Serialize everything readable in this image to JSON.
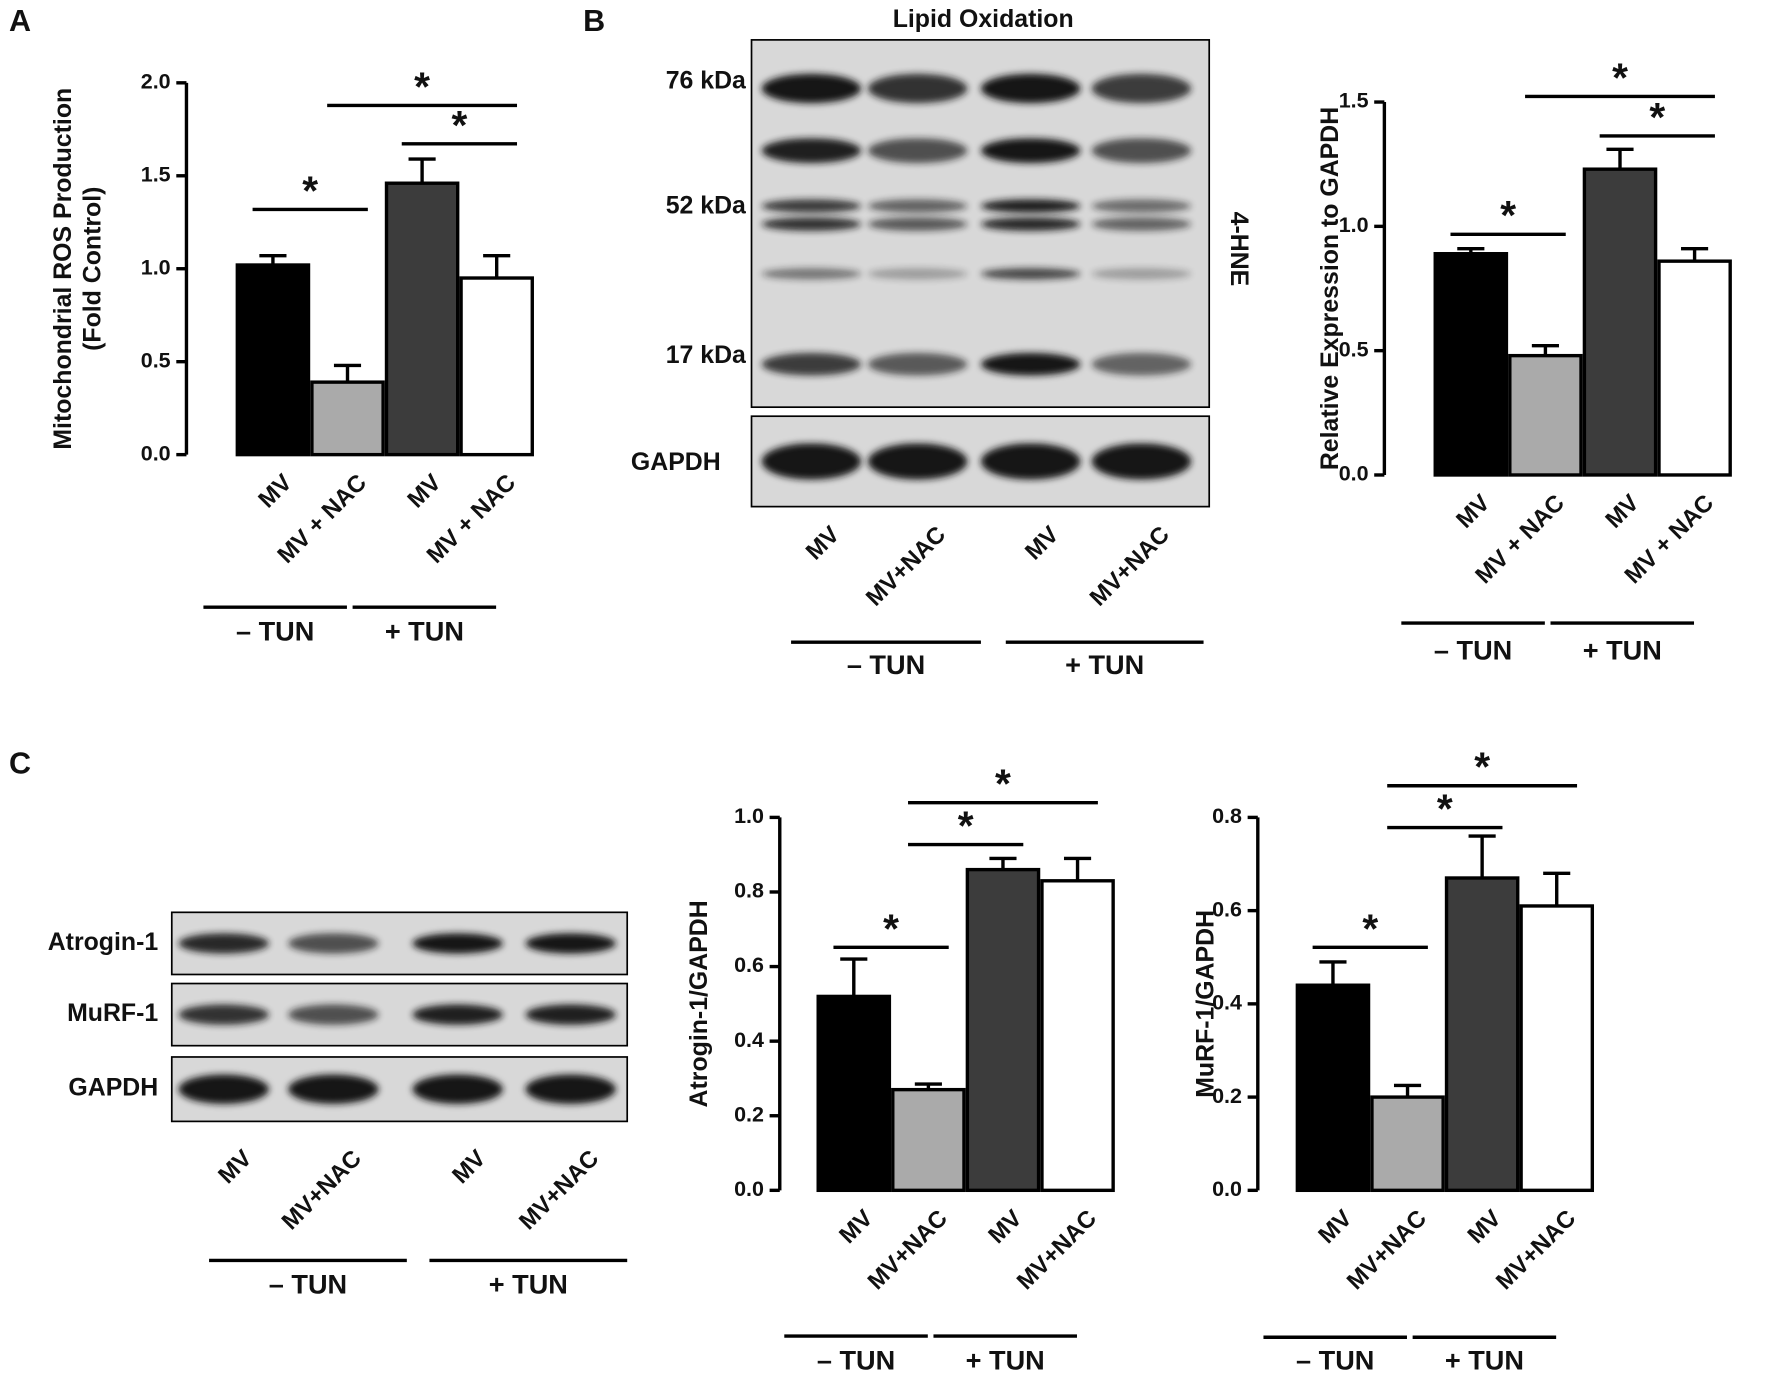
{
  "panel_labels": [
    "A",
    "B",
    "C"
  ],
  "chart_data": [
    {
      "type": "bar",
      "ylabel": [
        "Mitochondrial ROS Production",
        "(Fold Control)"
      ],
      "categories": [
        "MV",
        "MV + NAC",
        "MV",
        "MV + NAC"
      ],
      "groups": [
        "– TUN",
        "+ TUN"
      ],
      "values": [
        1.02,
        0.39,
        1.46,
        0.95
      ],
      "errors": [
        0.05,
        0.09,
        0.13,
        0.12
      ],
      "colors": [
        "#000000",
        "#aaaaaa",
        "#3c3c3c",
        "#ffffff"
      ],
      "ylim": [
        0,
        2
      ],
      "yticks": [
        {
          "value": 0,
          "label": "0.0"
        },
        {
          "value": 0.5,
          "label": "0.5"
        },
        {
          "value": 1,
          "label": "1.0"
        },
        {
          "value": 1.5,
          "label": "1.5"
        },
        {
          "value": 2,
          "label": "2.0"
        }
      ],
      "comparisons": [
        {
          "text": "*",
          "pair": [
            0,
            1
          ]
        },
        {
          "text": "*",
          "pair": [
            2,
            3
          ]
        },
        {
          "text": "*",
          "pair": [
            1,
            3
          ]
        }
      ]
    },
    {
      "type": "bar",
      "ylabel": [
        "Relative Expression to GAPDH"
      ],
      "categories": [
        "MV",
        "MV + NAC",
        "MV",
        "MV + NAC"
      ],
      "groups": [
        "– TUN",
        "+ TUN"
      ],
      "values": [
        0.89,
        0.48,
        1.23,
        0.86
      ],
      "errors": [
        0.02,
        0.04,
        0.08,
        0.05
      ],
      "colors": [
        "#000000",
        "#aaaaaa",
        "#3c3c3c",
        "#ffffff"
      ],
      "ylim": [
        0,
        1.5
      ],
      "yticks": [
        {
          "value": 0,
          "label": "0.0"
        },
        {
          "value": 0.5,
          "label": "0.5"
        },
        {
          "value": 1,
          "label": "1.0"
        },
        {
          "value": 1.5,
          "label": "1.5"
        }
      ],
      "comparisons": [
        {
          "text": "*",
          "pair": [
            0,
            1
          ]
        },
        {
          "text": "*",
          "pair": [
            2,
            3
          ]
        },
        {
          "text": "*",
          "pair": [
            1,
            3
          ]
        }
      ]
    },
    {
      "type": "bar",
      "ylabel": [
        "Atrogin-1/GAPDH"
      ],
      "categories": [
        "MV",
        "MV+NAC",
        "MV",
        "MV+NAC"
      ],
      "groups": [
        "– TUN",
        "+ TUN"
      ],
      "values": [
        0.52,
        0.27,
        0.86,
        0.83
      ],
      "errors": [
        0.1,
        0.015,
        0.03,
        0.06
      ],
      "colors": [
        "#000000",
        "#aaaaaa",
        "#3c3c3c",
        "#ffffff"
      ],
      "ylim": [
        0,
        1
      ],
      "yticks": [
        {
          "value": 0,
          "label": "0.0"
        },
        {
          "value": 0.2,
          "label": "0.2"
        },
        {
          "value": 0.4,
          "label": "0.4"
        },
        {
          "value": 0.6,
          "label": "0.6"
        },
        {
          "value": 0.8,
          "label": "0.8"
        },
        {
          "value": 1,
          "label": "1.0"
        }
      ],
      "comparisons": [
        {
          "text": "*",
          "pair": [
            0,
            1
          ]
        },
        {
          "text": "*",
          "pair": [
            1,
            2
          ]
        },
        {
          "text": "*",
          "pair": [
            1,
            3
          ]
        }
      ]
    },
    {
      "type": "bar",
      "ylabel": [
        "MuRF-1/GAPDH"
      ],
      "categories": [
        "MV",
        "MV+NAC",
        "MV",
        "MV+NAC"
      ],
      "groups": [
        "– TUN",
        "+ TUN"
      ],
      "values": [
        0.44,
        0.2,
        0.67,
        0.61
      ],
      "errors": [
        0.05,
        0.025,
        0.09,
        0.07
      ],
      "colors": [
        "#000000",
        "#aaaaaa",
        "#3c3c3c",
        "#ffffff"
      ],
      "ylim": [
        0,
        0.8
      ],
      "yticks": [
        {
          "value": 0,
          "label": "0.0"
        },
        {
          "value": 0.2,
          "label": "0.2"
        },
        {
          "value": 0.4,
          "label": "0.4"
        },
        {
          "value": 0.6,
          "label": "0.6"
        },
        {
          "value": 0.8,
          "label": "0.8"
        }
      ],
      "comparisons": [
        {
          "text": "*",
          "pair": [
            0,
            1
          ]
        },
        {
          "text": "*",
          "pair": [
            1,
            2
          ]
        },
        {
          "text": "*",
          "pair": [
            1,
            3
          ]
        }
      ]
    }
  ],
  "blots": [
    {
      "title": "Lipid Oxidation",
      "markers": [
        "76 kDa",
        "52 kDa",
        "17 kDa"
      ],
      "side_label": "4-HNE",
      "loading_label": "GAPDH",
      "lanes": [
        "MV",
        "MV+NAC",
        "MV",
        "MV+NAC"
      ],
      "groups": [
        "– TUN",
        "+ TUN"
      ]
    },
    {
      "rows": [
        "Atrogin-1",
        "MuRF-1",
        "GAPDH"
      ],
      "lanes": [
        "MV",
        "MV+NAC",
        "MV",
        "MV+NAC"
      ],
      "groups": [
        "– TUN",
        "+ TUN"
      ]
    }
  ]
}
